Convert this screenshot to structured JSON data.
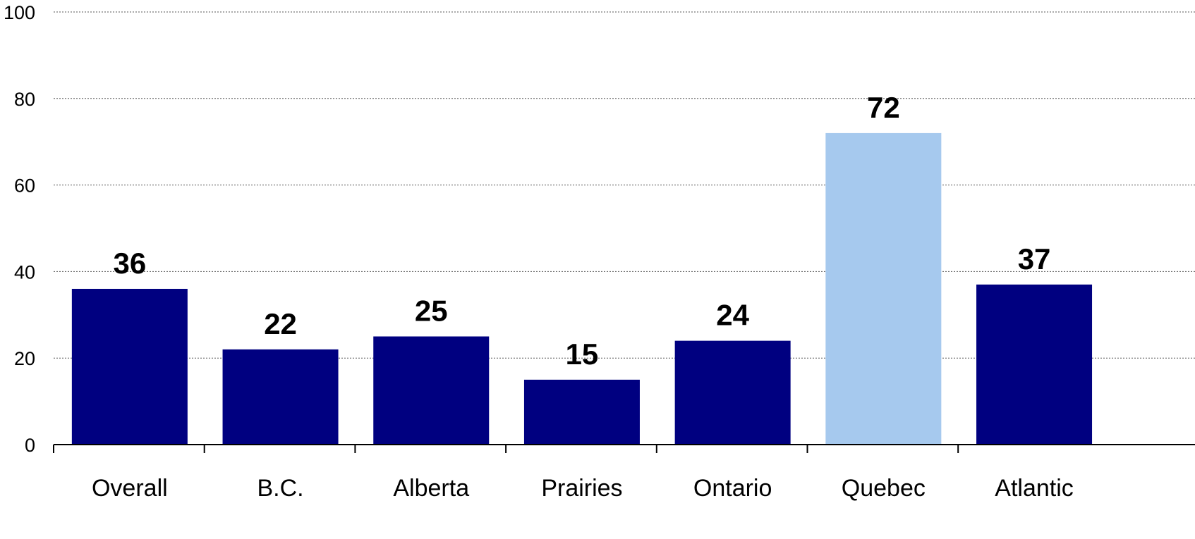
{
  "chart_data": {
    "type": "bar",
    "title": "",
    "xlabel": "",
    "ylabel": "",
    "categories": [
      "Overall",
      "B.C.",
      "Alberta",
      "Prairies",
      "Ontario",
      "Quebec",
      "Atlantic"
    ],
    "values": [
      36,
      22,
      25,
      15,
      24,
      72,
      37
    ],
    "data_labels": [
      "36",
      "22",
      "25",
      "15",
      "24",
      "72",
      "37"
    ],
    "ylim": [
      0,
      100
    ],
    "yticks": [
      0,
      20,
      40,
      60,
      80,
      100
    ],
    "ytick_labels": [
      "0",
      "20",
      "40",
      "60",
      "80",
      "100"
    ],
    "grid": true,
    "legend": "none",
    "colors": {
      "default_bar": "#000080",
      "highlight_bar": "#A6C9EE"
    },
    "highlight_category": "Quebec"
  }
}
